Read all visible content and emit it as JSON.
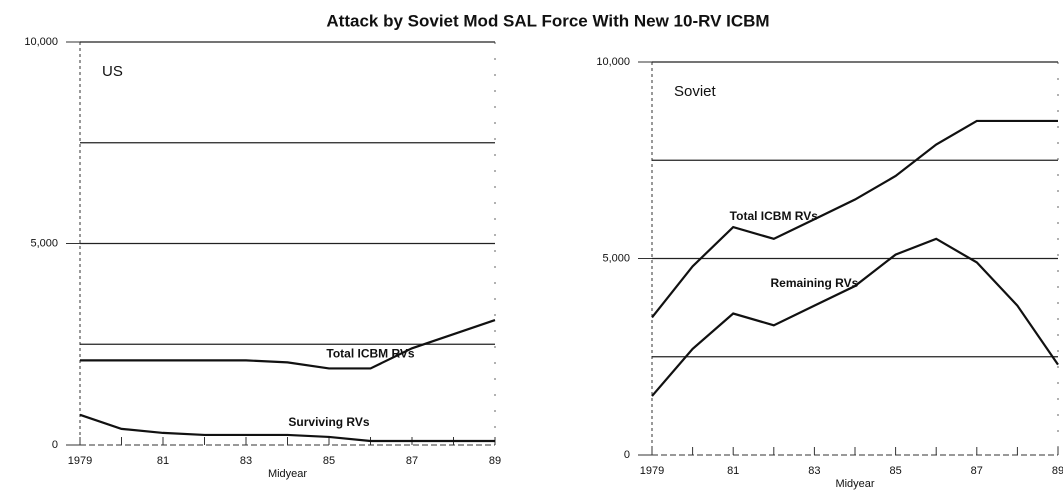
{
  "title": "Attack by Soviet Mod SAL Force With New 10-RV ICBM",
  "chart_data": [
    {
      "type": "line",
      "panel": "US",
      "xlabel": "Midyear",
      "categories": [
        "1979",
        null,
        "81",
        null,
        "83",
        null,
        "85",
        null,
        "87",
        null,
        "89"
      ],
      "series": [
        {
          "name": "Total ICBM RVs",
          "color": "#111111",
          "values": [
            2100,
            2100,
            2100,
            2100,
            2100,
            2050,
            1900,
            1900,
            2400,
            2750,
            3100
          ]
        },
        {
          "name": "Surviving RVs",
          "color": "#111111",
          "values": [
            750,
            400,
            300,
            250,
            250,
            250,
            200,
            100,
            100,
            100,
            100
          ]
        }
      ],
      "ylim": [
        0,
        10000
      ],
      "yticks": [
        0,
        {
          "value": 5000,
          "label": "5,000"
        },
        {
          "value": 10000,
          "label": "10,000"
        }
      ],
      "minor_yticks": [
        2500,
        7500
      ],
      "grid": true
    },
    {
      "type": "line",
      "panel": "Soviet",
      "xlabel": "Midyear",
      "categories": [
        "1979",
        null,
        "81",
        null,
        "83",
        null,
        "85",
        null,
        "87",
        null,
        "89"
      ],
      "series": [
        {
          "name": "Total ICBM RVs",
          "color": "#111111",
          "values": [
            3500,
            4800,
            5800,
            5500,
            6000,
            6500,
            7100,
            7900,
            8500,
            8500,
            8500
          ]
        },
        {
          "name": "Remaining RVs",
          "color": "#111111",
          "values": [
            1500,
            2700,
            3600,
            3300,
            3800,
            4300,
            5100,
            5500,
            4900,
            3800,
            2300
          ]
        }
      ],
      "ylim": [
        0,
        10000
      ],
      "yticks": [
        0,
        {
          "value": 5000,
          "label": "5,000"
        },
        {
          "value": 10000,
          "label": "10,000"
        }
      ],
      "minor_yticks": [
        2500,
        7500
      ],
      "grid": true
    }
  ]
}
